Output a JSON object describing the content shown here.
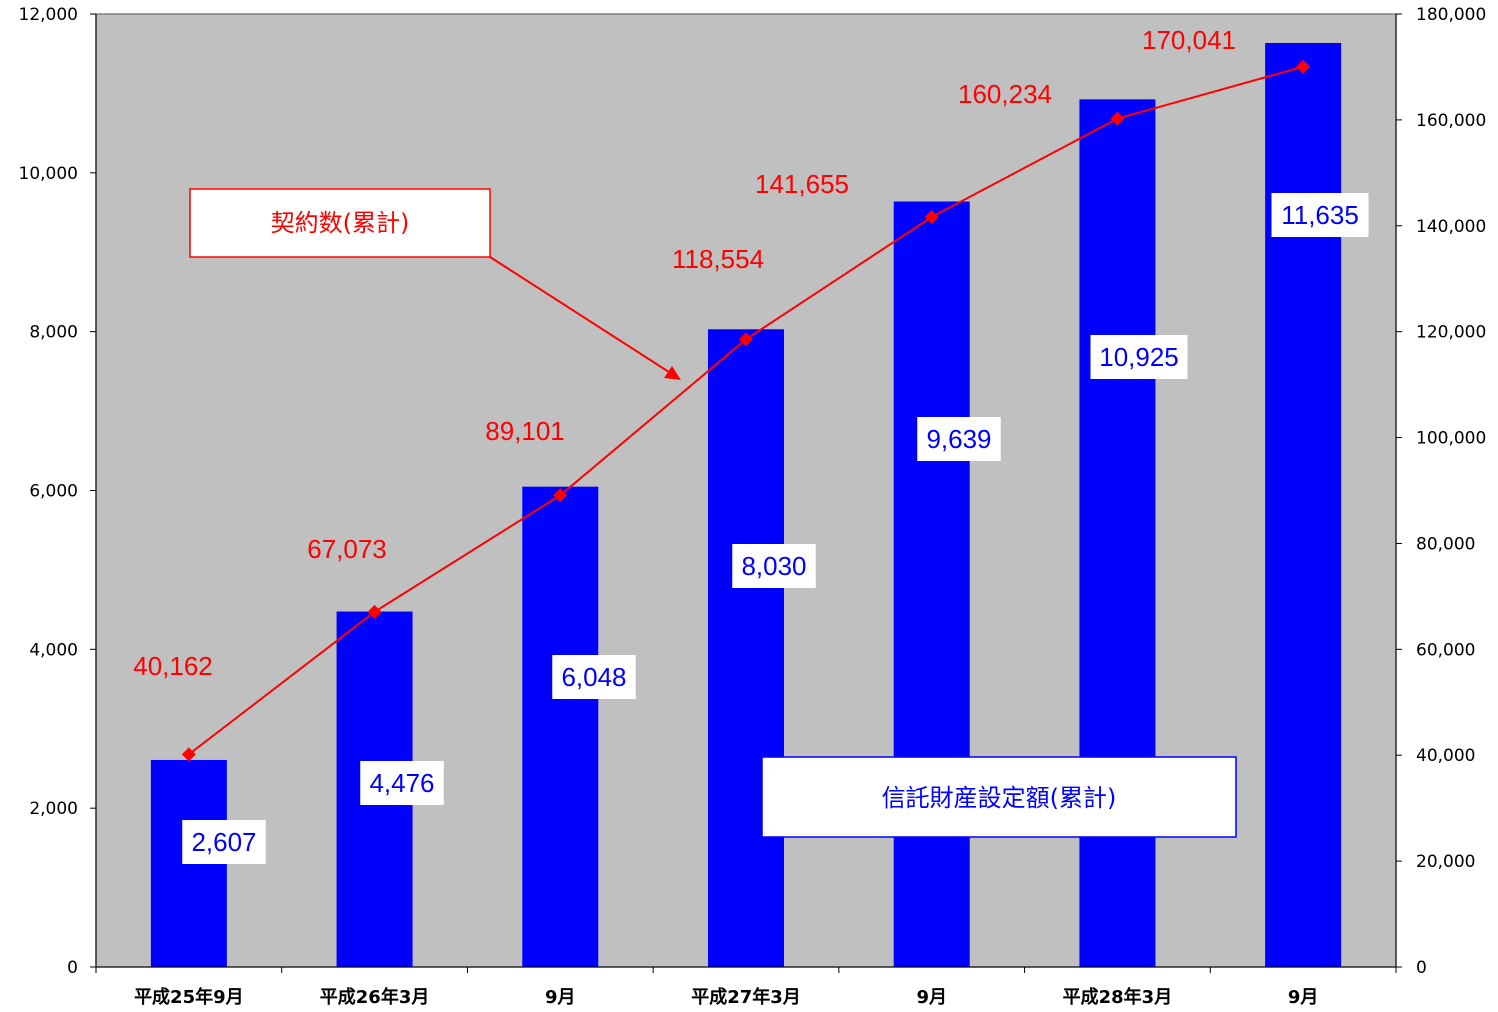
{
  "chart_data": {
    "type": "bar",
    "categories": [
      "平成25年9月",
      "平成26年3月",
      "9月",
      "平成27年3月",
      "9月",
      "平成28年3月",
      "9月"
    ],
    "series": [
      {
        "name": "信託財産設定額(累計)",
        "type": "bar",
        "axis": "left",
        "color": "#0000ff",
        "values": [
          2607,
          4476,
          6048,
          8030,
          9639,
          10925,
          11635
        ],
        "labels": [
          "2,607",
          "4,476",
          "6,048",
          "8,030",
          "9,639",
          "10,925",
          "11,635"
        ]
      },
      {
        "name": "契約数(累計)",
        "type": "line",
        "axis": "right",
        "color": "#ff0000",
        "values": [
          40162,
          67073,
          89101,
          118554,
          141655,
          160234,
          170041
        ],
        "labels": [
          "40,162",
          "67,073",
          "89,101",
          "118,554",
          "141,655",
          "160,234",
          "170,041"
        ]
      }
    ],
    "y_left": {
      "lim": [
        0,
        12000
      ],
      "ticks": [
        0,
        2000,
        4000,
        6000,
        8000,
        10000,
        12000
      ],
      "tick_labels": [
        "0",
        "2,000",
        "4,000",
        "6,000",
        "8,000",
        "10,000",
        "12,000"
      ]
    },
    "y_right": {
      "lim": [
        0,
        180000
      ],
      "ticks": [
        0,
        20000,
        40000,
        60000,
        80000,
        100000,
        120000,
        140000,
        160000,
        180000
      ],
      "tick_labels": [
        "0",
        "20,000",
        "40,000",
        "60,000",
        "80,000",
        "100,000",
        "120,000",
        "140,000",
        "160,000",
        "180,000"
      ]
    },
    "plot_background": "#c0c0c0",
    "grid": false,
    "legend": {
      "line_callout": "契約数(累計)",
      "bar_callout": "信託財産設定額(累計)"
    }
  }
}
